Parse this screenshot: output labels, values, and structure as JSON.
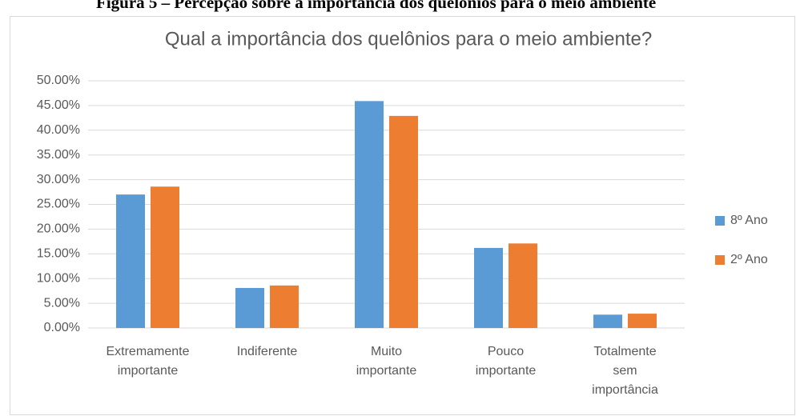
{
  "caption": "Figura 5 – Percepção sobre a importância dos quelônios para o meio ambiente",
  "chart_data": {
    "type": "bar",
    "title": "Qual a importância dos quelônios para o meio ambiente?",
    "categories": [
      [
        "Extremamente",
        "importante"
      ],
      [
        "Indiferente"
      ],
      [
        "Muito",
        "importante"
      ],
      [
        "Pouco",
        "importante"
      ],
      [
        "Totalmente",
        "sem",
        "importância"
      ]
    ],
    "series": [
      {
        "name": "8º Ano",
        "color": "#5b9bd5",
        "values": [
          27.0,
          8.1,
          45.9,
          16.2,
          2.7
        ]
      },
      {
        "name": "2º Ano",
        "color": "#ed7d31",
        "values": [
          28.6,
          8.6,
          42.9,
          17.1,
          2.9
        ]
      }
    ],
    "ylim": [
      0,
      50
    ],
    "yticks": [
      {
        "value": 0,
        "label": "0.00%"
      },
      {
        "value": 5,
        "label": "5.00%"
      },
      {
        "value": 10,
        "label": "10.00%"
      },
      {
        "value": 15,
        "label": "15.00%"
      },
      {
        "value": 20,
        "label": "20.00%"
      },
      {
        "value": 25,
        "label": "25.00%"
      },
      {
        "value": 30,
        "label": "30.00%"
      },
      {
        "value": 35,
        "label": "35.00%"
      },
      {
        "value": 40,
        "label": "40.00%"
      },
      {
        "value": 45,
        "label": "45.00%"
      },
      {
        "value": 50,
        "label": "50.00%"
      }
    ],
    "grid": true,
    "legend": "right"
  }
}
